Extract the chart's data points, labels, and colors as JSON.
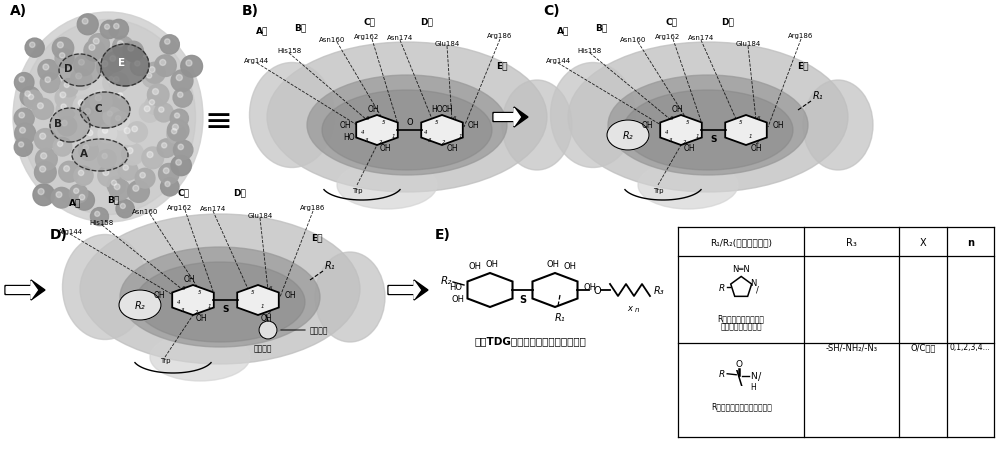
{
  "background_color": "#ffffff",
  "fig_width": 10.0,
  "fig_height": 4.56,
  "panel_A_label": "A)",
  "panel_B_label": "B)",
  "panel_C_label": "C)",
  "panel_D_label": "D)",
  "panel_E_label": "E)",
  "label_fontsize": 10,
  "regions_A": [
    "A",
    "B",
    "C",
    "D",
    "E"
  ],
  "regions_BCD": [
    "区"
  ],
  "amino_acids": [
    "Arg144",
    "His158",
    "Asn160",
    "Arg162",
    "Asn174",
    "Glu184",
    "Arg186",
    "Trp"
  ],
  "table_col0": "R₁/R₂(分别或同时为)",
  "table_col1": "R₃",
  "table_col2": "X",
  "table_col3": "n",
  "row1_text1": "R取自芳基、取代芳基",
  "row1_text2": "胺酰基、取代胺酰基",
  "row2_col2": "-SH/-NH₂/-N₃",
  "row2_col3": "O/C原子",
  "row2_col4": "0,1,2,3,4...",
  "row2_text": "R取自烷基、芳基、取代芳基",
  "formula_label": "基于TDG分子骨架功能分子结构通式",
  "func_chain": "功能侧链",
  "func_group": "功能基团"
}
